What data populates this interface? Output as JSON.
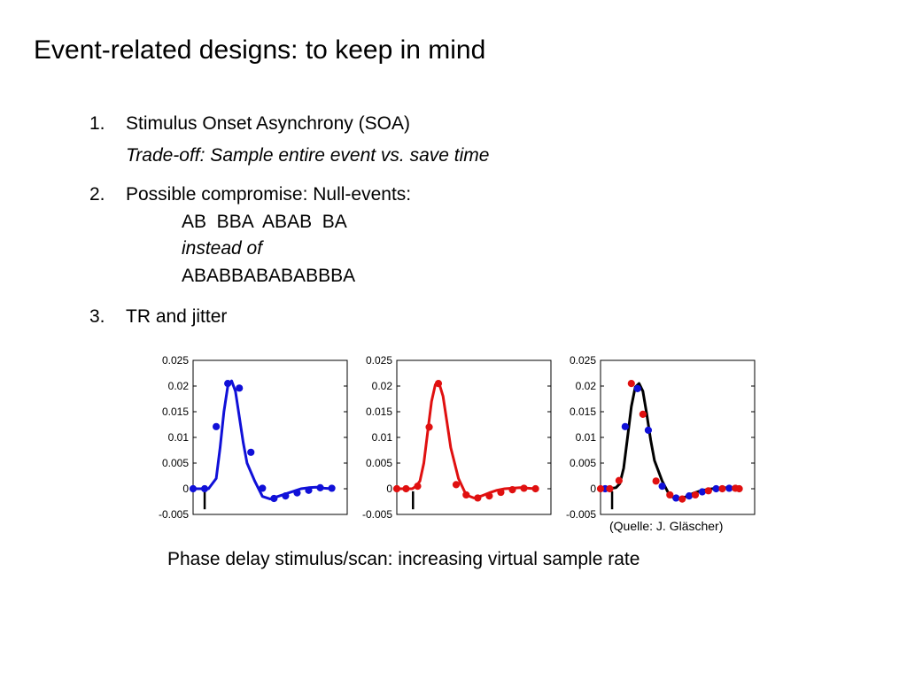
{
  "title": "Event-related designs: to keep in mind",
  "items": [
    {
      "number": "1.",
      "text": "Stimulus Onset Asynchrony (SOA)",
      "note": "Trade-off: Sample entire event vs. save time"
    },
    {
      "number": "2.",
      "text": "Possible compromise: Null-events:",
      "sequence": "AB  BBA  ABAB  BA",
      "instead_of": "instead of",
      "full_sequence": "ABABBABABABBBA"
    },
    {
      "number": "3.",
      "text": "TR and jitter"
    }
  ],
  "credit": "(Quelle: J. Gläscher)",
  "caption": "Phase delay stimulus/scan: increasing virtual sample rate",
  "colors": {
    "blue": "#1010d8",
    "red": "#e01010",
    "black": "#000000"
  },
  "chart_data": [
    {
      "type": "line",
      "yticks": [
        "0.025",
        "0.02",
        "0.015",
        "0.01",
        "0.005",
        "0",
        "-0.005"
      ],
      "ylim": [
        -0.005,
        0.025
      ],
      "xlim": [
        0,
        20
      ],
      "stimulus_marker_x": 1.5,
      "curve": {
        "x": [
          0,
          1,
          2,
          3,
          3.5,
          4,
          4.5,
          5,
          5.5,
          6,
          6.5,
          7,
          8,
          9,
          10,
          11,
          12,
          13,
          14,
          15,
          16,
          17,
          18
        ],
        "y": [
          0,
          0,
          0,
          0.002,
          0.008,
          0.015,
          0.02,
          0.021,
          0.019,
          0.014,
          0.009,
          0.005,
          0.0015,
          -0.0015,
          -0.002,
          -0.0015,
          -0.001,
          -0.0005,
          0,
          0.0002,
          0.0003,
          0.0001,
          0
        ]
      },
      "series": [
        {
          "color": "blue",
          "x": [
            0,
            1.5,
            3,
            4.5,
            6,
            7.5,
            9,
            10.5,
            12,
            13.5,
            15,
            16.5,
            18
          ],
          "y": [
            0,
            0,
            0.0121,
            0.0205,
            0.0196,
            0.0071,
            0.0001,
            -0.0019,
            -0.0014,
            -0.0008,
            -0.0003,
            0.0002,
            0.0001
          ]
        }
      ]
    },
    {
      "type": "line",
      "yticks": [
        "0.025",
        "0.02",
        "0.015",
        "0.01",
        "0.005",
        "0",
        "-0.005"
      ],
      "ylim": [
        -0.005,
        0.025
      ],
      "xlim": [
        0,
        20
      ],
      "stimulus_marker_x": 2.1,
      "curve": {
        "x": [
          0,
          1,
          2,
          2.5,
          3,
          3.5,
          4,
          4.5,
          5,
          5.5,
          6,
          6.5,
          7,
          8,
          9,
          10,
          11,
          12,
          13,
          14,
          15,
          16,
          17,
          18
        ],
        "y": [
          0,
          0,
          0,
          0.0005,
          0.0015,
          0.005,
          0.011,
          0.017,
          0.0203,
          0.0205,
          0.018,
          0.013,
          0.008,
          0.002,
          -0.0012,
          -0.0018,
          -0.0014,
          -0.0008,
          -0.0003,
          0,
          0.0001,
          0.0002,
          0.0001,
          0
        ]
      },
      "series": [
        {
          "color": "red",
          "x": [
            0,
            1.2,
            2.7,
            4.2,
            5.4,
            7.7,
            9,
            10.5,
            12,
            13.5,
            15,
            16.5,
            18
          ],
          "y": [
            0,
            0,
            0.0005,
            0.012,
            0.0205,
            0.0008,
            -0.0012,
            -0.0018,
            -0.0014,
            -0.0007,
            -0.0002,
            0.0001,
            0
          ]
        }
      ]
    },
    {
      "type": "line",
      "yticks": [
        "0.025",
        "0.02",
        "0.015",
        "0.01",
        "0.005",
        "0",
        "-0.005"
      ],
      "ylim": [
        -0.005,
        0.025
      ],
      "xlim": [
        0,
        20
      ],
      "stimulus_marker_x": 1.5,
      "curve": {
        "x": [
          0,
          1,
          2,
          2.5,
          3,
          3.5,
          4,
          4.5,
          5,
          5.5,
          6,
          6.5,
          7,
          8,
          9,
          10,
          11,
          12,
          13,
          14,
          15,
          16,
          17,
          18
        ],
        "y": [
          0,
          0,
          0.0002,
          0.001,
          0.004,
          0.01,
          0.016,
          0.0198,
          0.0205,
          0.019,
          0.0145,
          0.0095,
          0.0055,
          0.0015,
          -0.0014,
          -0.002,
          -0.0016,
          -0.0009,
          -0.0004,
          -0.0001,
          0.0001,
          0.0002,
          0.0001,
          0
        ]
      },
      "series": [
        {
          "color": "blue",
          "x": [
            0.6,
            3.2,
            4.8,
            6.2,
            8,
            9.8,
            11.5,
            13.2,
            15,
            16.7
          ],
          "y": [
            0,
            0.0121,
            0.0195,
            0.0114,
            0.0005,
            -0.0018,
            -0.0014,
            -0.0006,
            0,
            0.0001
          ]
        },
        {
          "color": "red",
          "x": [
            0,
            1.2,
            2.4,
            4,
            5.5,
            7.2,
            9,
            10.6,
            12.3,
            14,
            15.8,
            17.5,
            18
          ],
          "y": [
            0,
            0,
            0.0016,
            0.0205,
            0.0145,
            0.0015,
            -0.0012,
            -0.002,
            -0.0012,
            -0.0004,
            0,
            0.0001,
            0
          ]
        }
      ]
    }
  ]
}
